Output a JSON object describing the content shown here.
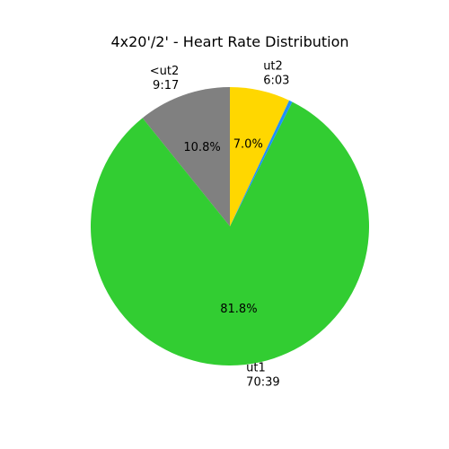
{
  "chart_data": {
    "type": "pie",
    "title": "4x20'/2' - Heart Rate Distribution",
    "start_angle_deg": 90,
    "direction": "counterclockwise",
    "slices": [
      {
        "key": "ut2_lt",
        "label": "<ut2",
        "time": "9:17",
        "pct": 10.8,
        "pct_text": "10.8%",
        "color": "#808080"
      },
      {
        "key": "ut1",
        "label": "ut1",
        "time": "70:39",
        "pct": 81.8,
        "pct_text": "81.8%",
        "color": "#32cd32"
      },
      {
        "key": "other",
        "label": "",
        "time": "",
        "pct": 0.4,
        "pct_text": "",
        "color": "#1e90ff"
      },
      {
        "key": "ut2",
        "label": "ut2",
        "time": "6:03",
        "pct": 7.0,
        "pct_text": "7.0%",
        "color": "#ffd700"
      }
    ]
  }
}
